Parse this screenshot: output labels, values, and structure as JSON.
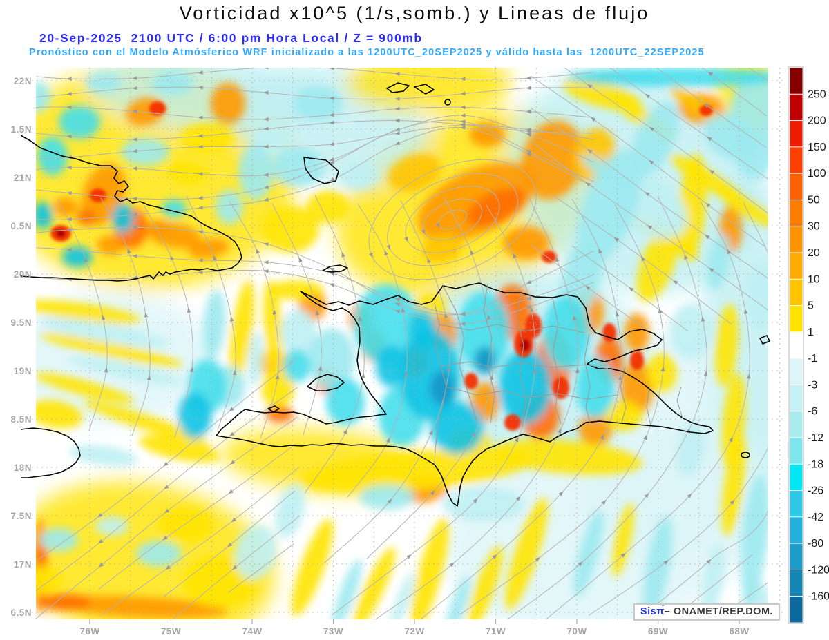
{
  "header": {
    "title": "Vorticidad x10^5 (1/s,somb.) y Lineas de flujo",
    "subtitle_datetime": "20-Sep-2025  2100 UTC / 6:00 pm Hora Local / Z = 900mb",
    "subtitle_model": "Pronóstico con el Modelo Atmósferico WRF inicializado a las 1200UTC_20SEP2025 y válido hasta las  1200UTC_22SEP2025",
    "subtitle_datetime_color": "#2b2bff",
    "subtitle_model_color": "#2fa8ff"
  },
  "axes": {
    "lat_tick_labels": [
      "22N",
      "1.5N",
      "21N",
      "0.5N",
      "20N",
      "9.5N",
      "19N",
      "8.5N",
      "18N",
      "7.5N",
      "17N",
      "6.5N"
    ],
    "lon_tick_labels": [
      "76W",
      "75W",
      "74W",
      "73W",
      "72W",
      "71W",
      "70W",
      "69W",
      "68W"
    ]
  },
  "colorbar": {
    "labels": [
      "250",
      "200",
      "150",
      "100",
      "50",
      "30",
      "20",
      "10",
      "5",
      "1",
      "-1",
      "-3",
      "-6",
      "-12",
      "-18",
      "-26",
      "-42",
      "-80",
      "-120",
      "-160"
    ],
    "colors": [
      "#860000",
      "#c00000",
      "#ee1c00",
      "#ff4000",
      "#ff6000",
      "#ff7e00",
      "#ff9400",
      "#ffab00",
      "#ffc300",
      "#ffe400",
      "#ffffff",
      "#dcf5f6",
      "#c4f1f3",
      "#a8ecef",
      "#7ce6ec",
      "#00e6f2",
      "#2fc9e8",
      "#22b2db",
      "#1c9cc9",
      "#1585b3",
      "#0b689c"
    ]
  },
  "credit": {
    "brand": "Sisπ́",
    "dash": "– ",
    "org": "ONAMET/REP.DOM.",
    "brand_color": "#2233dd"
  },
  "chart_data": {
    "type": "heatmap",
    "subtype": "meteorological-model-map",
    "title": "Vorticidad x10^5 (1/s,somb.) y Lineas de flujo",
    "shaded_variable": "Vorticidad x10^5 (1/s)",
    "overlay": "Lineas de flujo (streamlines with arrowheads), coastlines, province borders",
    "level": "Z = 900mb",
    "datetime": "20-Sep-2025 2100 UTC / 6:00 pm Hora Local",
    "model": "WRF",
    "initialized": "1200UTC_20SEP2025",
    "valid_until": "1200UTC_22SEP2025",
    "x_ticks": [
      "76W",
      "75W",
      "74W",
      "73W",
      "72W",
      "71W",
      "70W",
      "69W",
      "68W"
    ],
    "y_ticks": [
      "22N",
      "1.5N",
      "21N",
      "0.5N",
      "20N",
      "9.5N",
      "19N",
      "8.5N",
      "18N",
      "7.5N",
      "17N",
      "6.5N"
    ],
    "colorbar_levels": [
      250,
      200,
      150,
      100,
      50,
      30,
      20,
      10,
      5,
      1,
      -1,
      -3,
      -6,
      -12,
      -18,
      -26,
      -42,
      -80,
      -120,
      -160
    ],
    "colorbar_colors": [
      "#860000",
      "#c00000",
      "#ee1c00",
      "#ff4000",
      "#ff6000",
      "#ff7e00",
      "#ff9400",
      "#ffab00",
      "#ffc300",
      "#ffe400",
      "#ffffff",
      "#dcf5f6",
      "#c4f1f3",
      "#a8ecef",
      "#7ce6ec",
      "#00e6f2",
      "#2fc9e8",
      "#22b2db",
      "#1c9cc9",
      "#1585b3",
      "#0b689c"
    ],
    "legend_position": "right",
    "grid": "dotted, 0.5 degree",
    "source": "ONAMET/REP.DOM."
  }
}
